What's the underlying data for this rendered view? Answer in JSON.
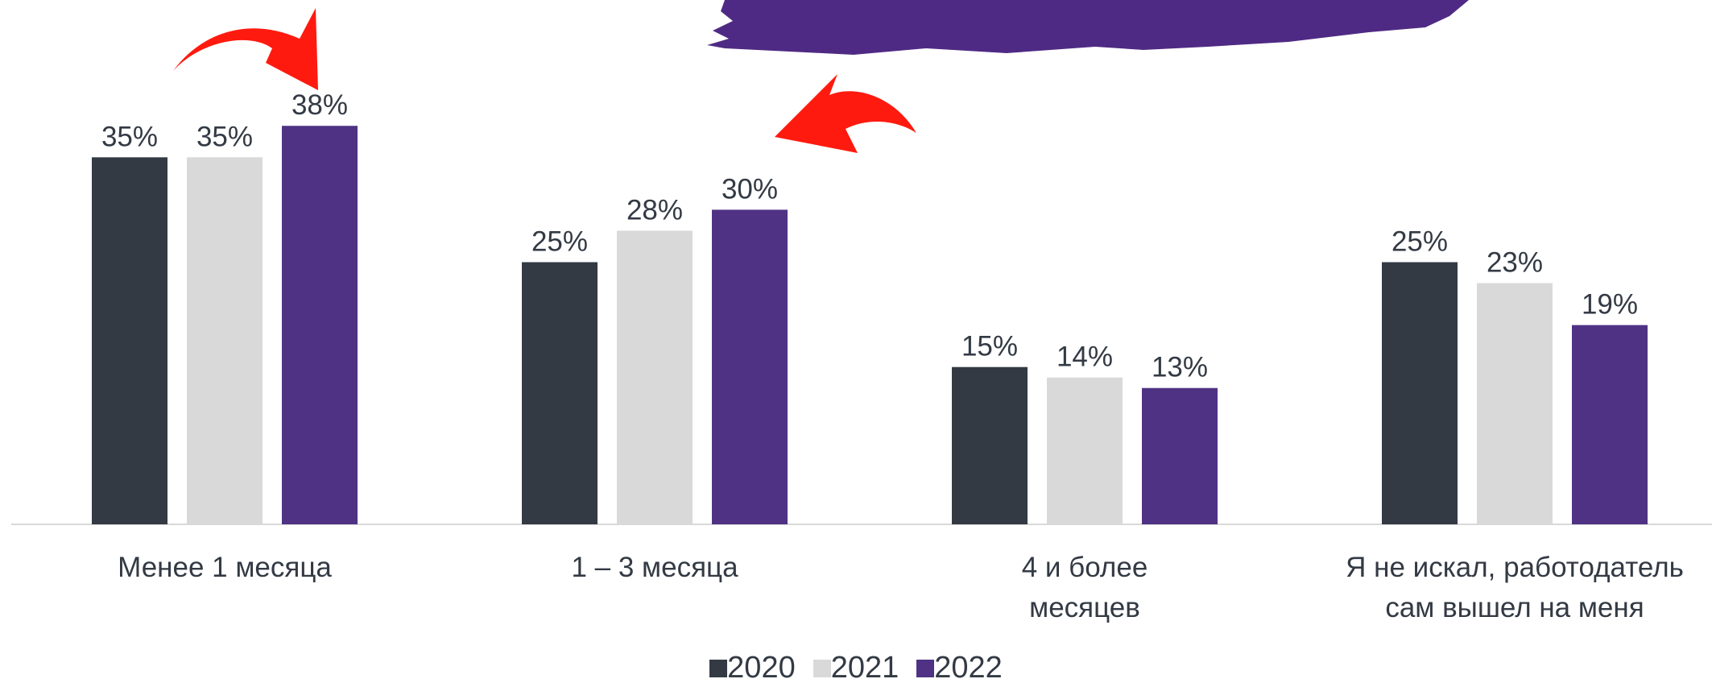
{
  "chart_data": {
    "type": "bar",
    "categories": [
      "Менее 1 месяца",
      "1 – 3 месяца",
      "4 и более месяцев",
      "Я не искал, работодатель сам вышел на меня"
    ],
    "series": [
      {
        "name": "2020",
        "color": "#333a44",
        "values": [
          35,
          25,
          15,
          25
        ],
        "value_labels": [
          "35%",
          "25%",
          "15%",
          "25%"
        ]
      },
      {
        "name": "2021",
        "color": "#d9d9d9",
        "values": [
          35,
          28,
          14,
          23
        ],
        "value_labels": [
          "35%",
          "28%",
          "14%",
          "23%"
        ]
      },
      {
        "name": "2022",
        "color": "#4f3284",
        "values": [
          38,
          30,
          13,
          19
        ],
        "value_labels": [
          "38%",
          "30%",
          "13%",
          "19%"
        ]
      }
    ],
    "ylim": [
      0,
      50
    ],
    "grid": false,
    "legend": "bottom"
  }
}
